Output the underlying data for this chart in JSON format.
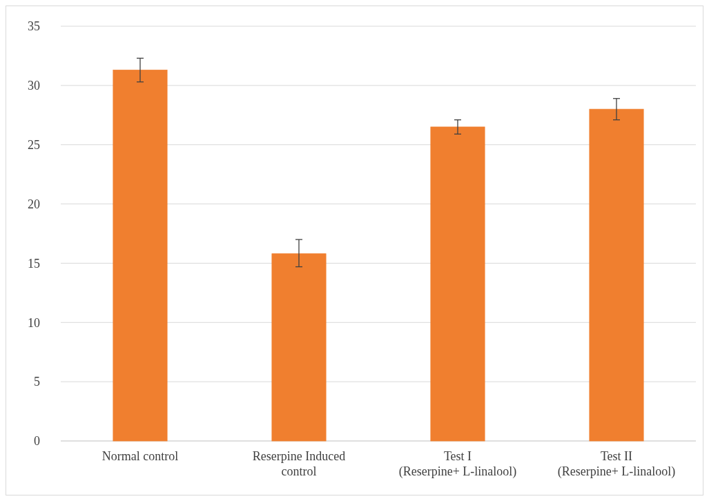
{
  "chart_data": {
    "type": "bar",
    "categories": [
      "Normal control",
      "Reserpine Induced\ncontrol",
      "Test I\n(Reserpine+ L-linalool)",
      "Test II\n(Reserpine+ L-linalool)"
    ],
    "values": [
      31.3,
      15.8,
      26.5,
      28.0
    ],
    "errors": [
      [
        30.3,
        32.3
      ],
      [
        14.7,
        17.0
      ],
      [
        25.9,
        27.1
      ],
      [
        27.1,
        28.9
      ]
    ],
    "color": "#f07f2f",
    "ylim": [
      0,
      35
    ],
    "yticks": [
      0,
      5,
      10,
      15,
      20,
      25,
      30,
      35
    ],
    "grid": "y"
  }
}
